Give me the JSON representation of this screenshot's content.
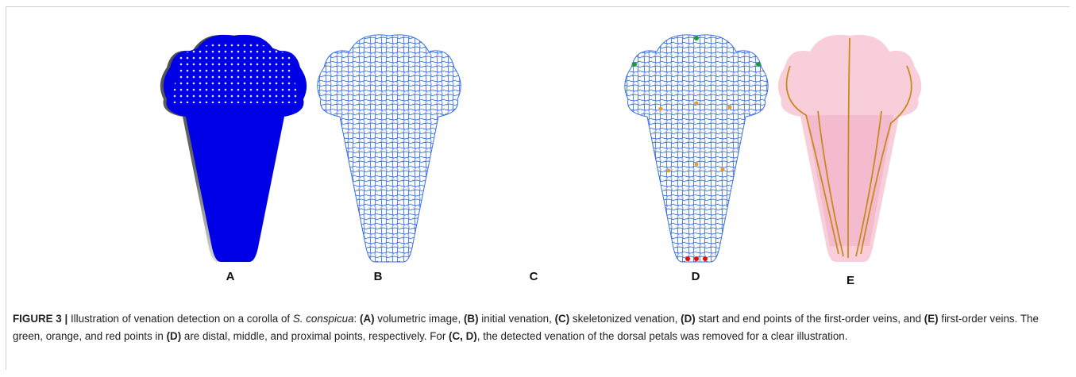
{
  "panels": [
    {
      "label": "A"
    },
    {
      "label": "B"
    },
    {
      "label": "C"
    },
    {
      "label": "D"
    },
    {
      "label": "E"
    }
  ],
  "caption": {
    "parts": [
      "FIGURE 3 |",
      " Illustration of venation detection on a corolla of ",
      "S. conspicua",
      ": ",
      "(A)",
      " volumetric image, ",
      "(B)",
      " initial venation, ",
      "(C)",
      " skeletonized venation, ",
      "(D)",
      " start and end points of the first-order veins, and ",
      "(E)",
      " first-order veins. The green, orange, and red points in ",
      "(D)",
      " are distal, middle, and proximal points, respectively. For ",
      "(C, D)",
      ", the detected venation of the dorsal petals was removed for a clear illustration."
    ]
  }
}
